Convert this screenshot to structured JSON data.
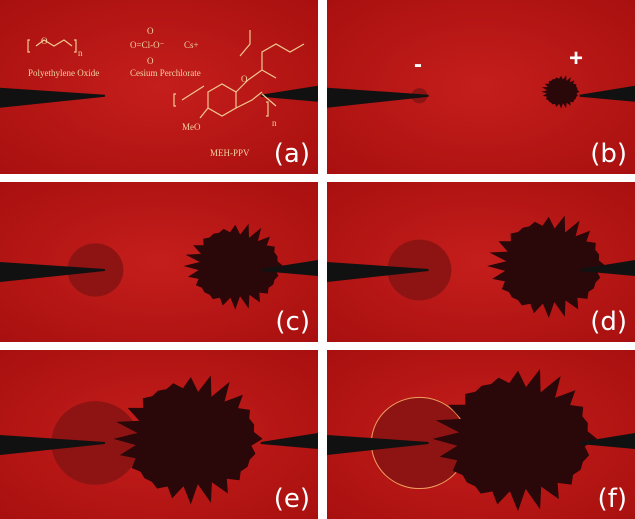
{
  "panels": [
    {
      "label": "(a)"
    },
    {
      "label": "(b)"
    },
    {
      "label": "(c)"
    },
    {
      "label": "(d)"
    },
    {
      "label": "(e)"
    },
    {
      "label": "(f)"
    }
  ],
  "chemistry": {
    "peo": "Polyethylene Oxide",
    "perchlorate": "Cesium Perchlorate",
    "mehppv": "MEH-PPV",
    "cation": "Cs+",
    "methoxy": "MeO",
    "repeat": "n"
  },
  "electrodes": {
    "negative": "-",
    "positive": "+"
  }
}
